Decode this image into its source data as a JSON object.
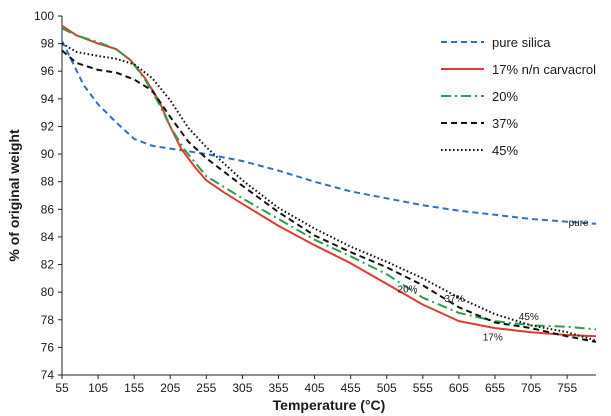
{
  "chart_data": {
    "type": "line",
    "xlabel": "Temperature (°C)",
    "ylabel": "% of original weight",
    "xlim": [
      55,
      795
    ],
    "ylim": [
      74,
      100
    ],
    "x_ticks": [
      55,
      105,
      155,
      205,
      255,
      305,
      355,
      405,
      455,
      505,
      555,
      605,
      655,
      705,
      755
    ],
    "y_ticks": [
      74,
      76,
      78,
      80,
      82,
      84,
      86,
      88,
      90,
      92,
      94,
      96,
      98,
      100
    ],
    "grid": false,
    "legend_position": "top-right",
    "series": [
      {
        "name": "pure silica",
        "color": "#2f6fbf",
        "dash": "dashed",
        "points": [
          [
            55,
            98.2
          ],
          [
            70,
            96.6
          ],
          [
            85,
            95.0
          ],
          [
            105,
            93.6
          ],
          [
            130,
            92.3
          ],
          [
            155,
            91.1
          ],
          [
            180,
            90.6
          ],
          [
            205,
            90.4
          ],
          [
            230,
            90.2
          ],
          [
            255,
            90.0
          ],
          [
            305,
            89.5
          ],
          [
            355,
            88.8
          ],
          [
            405,
            88.0
          ],
          [
            455,
            87.3
          ],
          [
            505,
            86.8
          ],
          [
            555,
            86.3
          ],
          [
            605,
            85.9
          ],
          [
            655,
            85.6
          ],
          [
            705,
            85.3
          ],
          [
            755,
            85.1
          ],
          [
            795,
            84.95
          ]
        ]
      },
      {
        "name": "17% n/n carvacrol",
        "color": "#e23a32",
        "dash": "solid",
        "points": [
          [
            55,
            99.3
          ],
          [
            75,
            98.6
          ],
          [
            105,
            98.0
          ],
          [
            130,
            97.6
          ],
          [
            150,
            96.8
          ],
          [
            170,
            95.5
          ],
          [
            190,
            93.8
          ],
          [
            205,
            92.0
          ],
          [
            220,
            90.4
          ],
          [
            240,
            89.0
          ],
          [
            255,
            88.1
          ],
          [
            280,
            87.2
          ],
          [
            305,
            86.4
          ],
          [
            355,
            84.8
          ],
          [
            405,
            83.4
          ],
          [
            455,
            82.1
          ],
          [
            505,
            80.6
          ],
          [
            555,
            79.1
          ],
          [
            605,
            77.9
          ],
          [
            655,
            77.4
          ],
          [
            705,
            77.1
          ],
          [
            755,
            76.9
          ],
          [
            795,
            76.8
          ]
        ]
      },
      {
        "name": "20%",
        "color": "#2e9c4a",
        "dash": "dashdot",
        "points": [
          [
            55,
            99.1
          ],
          [
            75,
            98.6
          ],
          [
            105,
            98.1
          ],
          [
            130,
            97.6
          ],
          [
            150,
            96.8
          ],
          [
            170,
            95.4
          ],
          [
            190,
            93.6
          ],
          [
            205,
            92.0
          ],
          [
            225,
            90.3
          ],
          [
            255,
            88.4
          ],
          [
            305,
            86.8
          ],
          [
            355,
            85.3
          ],
          [
            405,
            83.8
          ],
          [
            455,
            82.6
          ],
          [
            505,
            81.3
          ],
          [
            555,
            79.6
          ],
          [
            605,
            78.5
          ],
          [
            655,
            77.9
          ],
          [
            705,
            77.6
          ],
          [
            755,
            77.5
          ],
          [
            795,
            77.3
          ]
        ]
      },
      {
        "name": "37%",
        "color": "#111111",
        "dash": "dashed",
        "points": [
          [
            55,
            97.5
          ],
          [
            75,
            96.6
          ],
          [
            105,
            96.1
          ],
          [
            130,
            95.9
          ],
          [
            155,
            95.4
          ],
          [
            180,
            94.6
          ],
          [
            205,
            92.7
          ],
          [
            230,
            90.9
          ],
          [
            255,
            89.7
          ],
          [
            305,
            87.7
          ],
          [
            355,
            85.8
          ],
          [
            405,
            84.1
          ],
          [
            455,
            82.9
          ],
          [
            505,
            81.8
          ],
          [
            555,
            80.5
          ],
          [
            605,
            78.9
          ],
          [
            655,
            77.8
          ],
          [
            705,
            77.4
          ],
          [
            755,
            76.8
          ],
          [
            795,
            76.4
          ]
        ]
      },
      {
        "name": "45%",
        "color": "#111111",
        "dash": "dotted",
        "points": [
          [
            55,
            98.0
          ],
          [
            75,
            97.4
          ],
          [
            105,
            97.1
          ],
          [
            130,
            96.9
          ],
          [
            155,
            96.5
          ],
          [
            180,
            95.5
          ],
          [
            205,
            93.9
          ],
          [
            230,
            91.9
          ],
          [
            255,
            90.5
          ],
          [
            305,
            88.1
          ],
          [
            355,
            86.1
          ],
          [
            405,
            84.6
          ],
          [
            455,
            83.3
          ],
          [
            505,
            82.2
          ],
          [
            555,
            81.0
          ],
          [
            605,
            79.6
          ],
          [
            655,
            78.4
          ],
          [
            705,
            77.6
          ],
          [
            755,
            77.1
          ],
          [
            795,
            76.5
          ]
        ]
      }
    ],
    "annotations": [
      {
        "text": "pure",
        "x": 757,
        "y": 85.0
      },
      {
        "text": "20%",
        "x": 520,
        "y": 80.2
      },
      {
        "text": "37%",
        "x": 585,
        "y": 79.5
      },
      {
        "text": "45%",
        "x": 688,
        "y": 78.2
      },
      {
        "text": "17%",
        "x": 638,
        "y": 76.7
      }
    ]
  }
}
